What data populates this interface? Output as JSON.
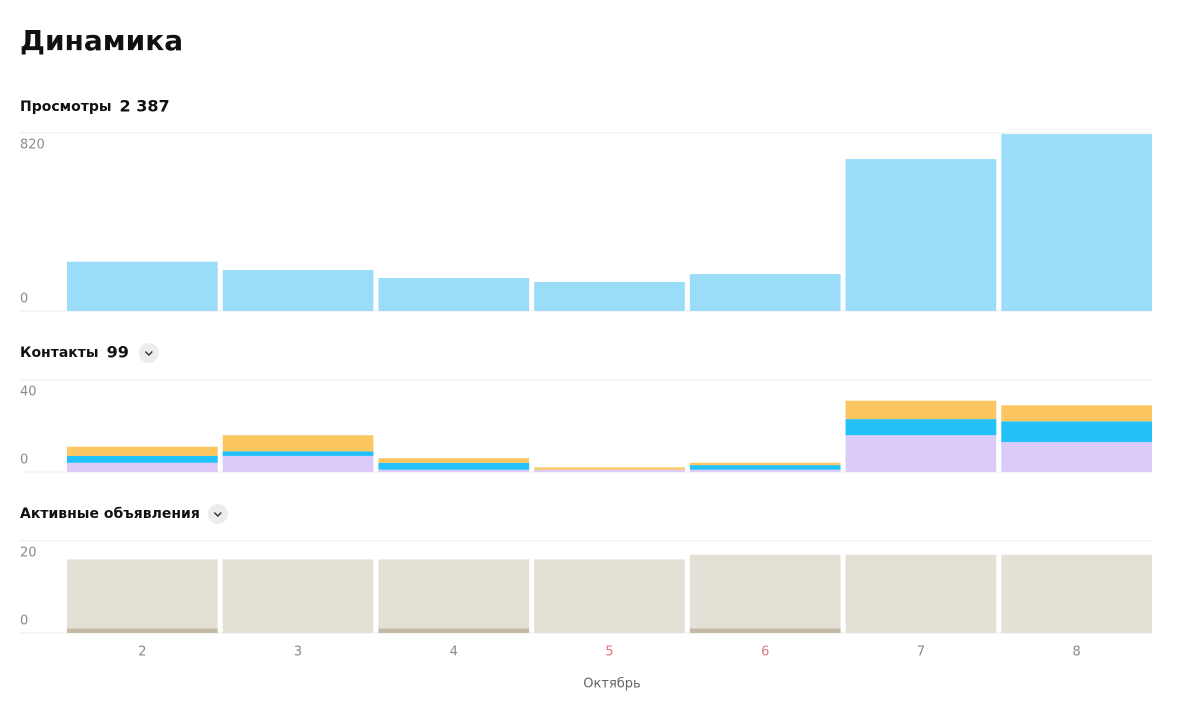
{
  "title": "Динамика",
  "chart_data": [
    {
      "type": "bar",
      "title": "Просмотры",
      "total": {
        "value": 2387,
        "label": "2 387"
      },
      "values": [
        227,
        189,
        152,
        134,
        170,
        700,
        815
      ],
      "color": "#9bdcf9",
      "ylim": [
        0,
        820
      ],
      "yticks": [
        0,
        820
      ],
      "grid": true
    },
    {
      "type": "stacked_bar",
      "title": "Контакты",
      "total": 99,
      "expandable": true,
      "series": [
        {
          "color": "#dccbf8",
          "values": [
            4,
            7,
            1,
            1,
            1,
            16,
            13
          ]
        },
        {
          "color": "#22c1f9",
          "values": [
            3,
            2,
            3,
            0,
            2,
            7,
            9
          ]
        },
        {
          "color": "#fcc660",
          "values": [
            4,
            7,
            2,
            1,
            1,
            8,
            7
          ]
        }
      ],
      "ylim": [
        0,
        40
      ],
      "yticks": [
        0,
        40
      ],
      "grid": true
    },
    {
      "type": "stacked_bar",
      "title": "Активные объявления",
      "expandable": true,
      "series": [
        {
          "color": "#c4b9a5",
          "values": [
            1,
            0,
            1,
            0,
            1,
            0,
            0
          ]
        },
        {
          "color": "#e5e0d5",
          "values": [
            15,
            16,
            15,
            16,
            16,
            17,
            17
          ]
        }
      ],
      "ylim": [
        0,
        20
      ],
      "yticks": [
        0,
        20
      ],
      "grid": true,
      "categories": [
        "2",
        "3",
        "4",
        "5",
        "6",
        "7",
        "8"
      ],
      "category_colors": [
        "#8a8a8a",
        "#8a8a8a",
        "#8a8a8a",
        "#e8737a",
        "#e8737a",
        "#8a8a8a",
        "#8a8a8a"
      ],
      "xlabel": "Октябрь"
    }
  ]
}
